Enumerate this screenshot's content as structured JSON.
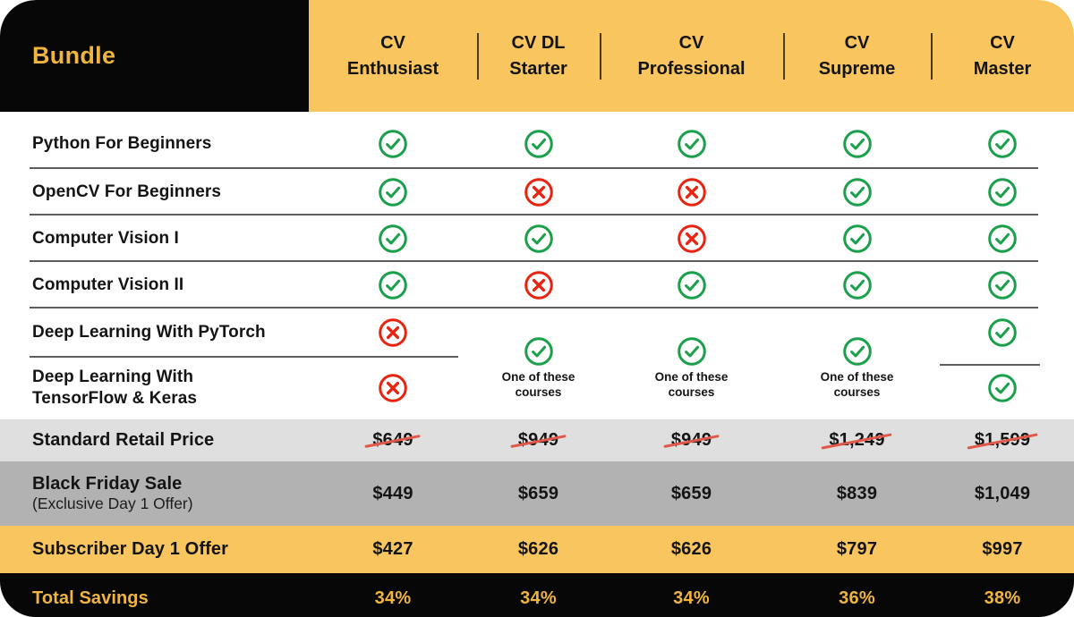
{
  "header": {
    "bundle_label": "Bundle",
    "columns": [
      {
        "line1": "CV",
        "line2": "Enthusiast"
      },
      {
        "line1": "CV DL",
        "line2": "Starter"
      },
      {
        "line1": "CV",
        "line2": "Professional"
      },
      {
        "line1": "CV",
        "line2": "Supreme"
      },
      {
        "line1": "CV",
        "line2": "Master"
      }
    ]
  },
  "courses": [
    {
      "name": "Python For Beginners",
      "availability": [
        "yes",
        "yes",
        "yes",
        "yes",
        "yes"
      ]
    },
    {
      "name": "OpenCV For Beginners",
      "availability": [
        "yes",
        "no",
        "no",
        "yes",
        "yes"
      ]
    },
    {
      "name": "Computer Vision I",
      "availability": [
        "yes",
        "yes",
        "no",
        "yes",
        "yes"
      ]
    },
    {
      "name": "Computer Vision II",
      "availability": [
        "yes",
        "no",
        "yes",
        "yes",
        "yes"
      ]
    }
  ],
  "combined_courses": {
    "top_name": "Deep Learning With PyTorch",
    "bottom_name": "Deep Learning With TensorFlow & Keras",
    "one_of_label": "One of these courses",
    "enthusiast": [
      "no",
      "no"
    ],
    "middle_columns": [
      "one-of",
      "one-of",
      "one-of"
    ],
    "master": [
      "yes",
      "yes"
    ]
  },
  "pricing": [
    {
      "style": "retail",
      "label": "Standard Retail Price",
      "sublabel": "",
      "strike": true,
      "values": [
        "$649",
        "$949",
        "$949",
        "$1,249",
        "$1,599"
      ]
    },
    {
      "style": "bf",
      "label": "Black Friday Sale",
      "sublabel": "(Exclusive Day 1 Offer)",
      "strike": false,
      "values": [
        "$449",
        "$659",
        "$659",
        "$839",
        "$1,049"
      ]
    },
    {
      "style": "sub",
      "label": "Subscriber Day 1 Offer",
      "sublabel": "",
      "strike": false,
      "values": [
        "$427",
        "$626",
        "$626",
        "$797",
        "$997"
      ]
    },
    {
      "style": "save",
      "label": "Total Savings",
      "sublabel": "",
      "strike": false,
      "values": [
        "34%",
        "34%",
        "34%",
        "36%",
        "38%"
      ]
    }
  ],
  "icons": {
    "yes": "check-circle-icon",
    "no": "x-circle-icon"
  },
  "colors": {
    "yellow": "#F8C55F",
    "black": "#070707",
    "gold": "#F0B53E",
    "light_gray": "#DFDFDF",
    "dark_gray": "#B2B2B2",
    "green": "#1A9F4B",
    "red": "#E8230F",
    "strike_red": "#E0584A"
  }
}
